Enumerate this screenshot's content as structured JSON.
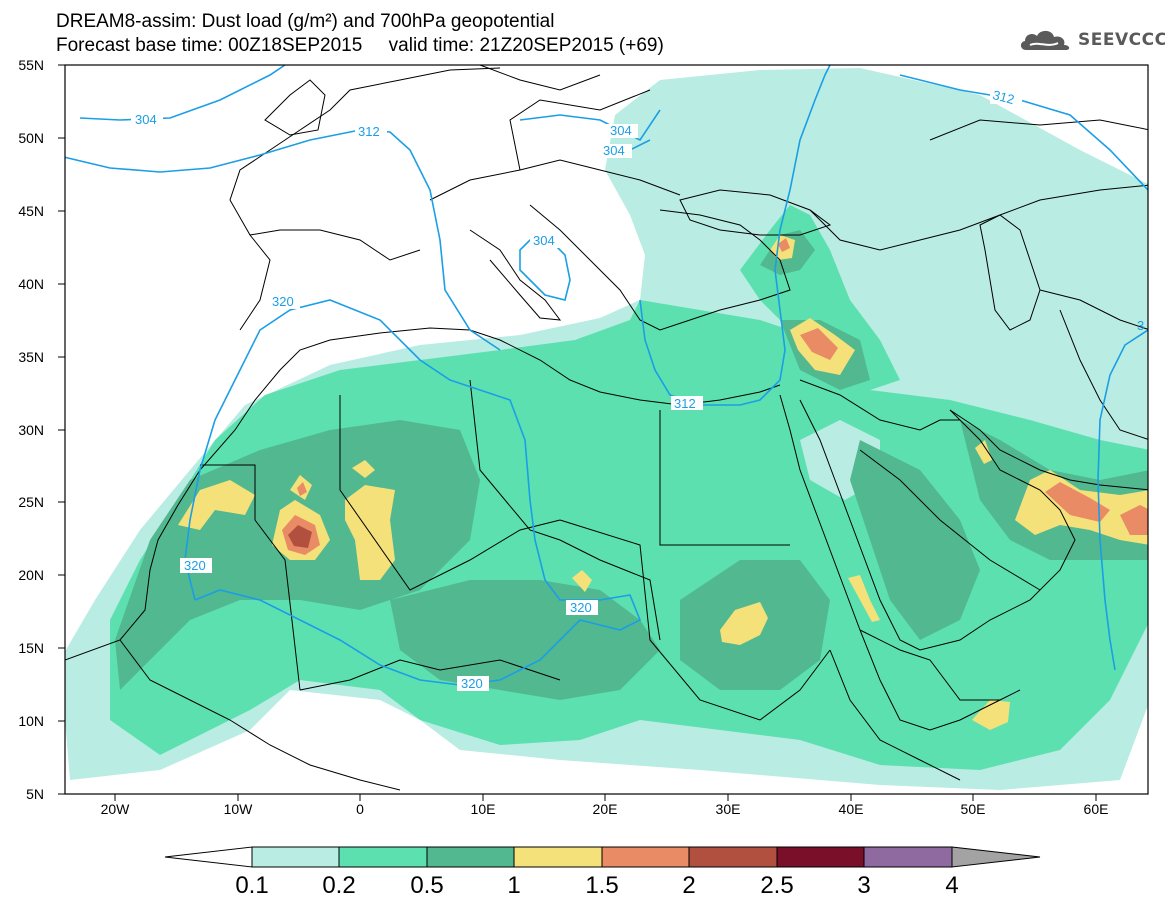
{
  "title": {
    "line1": "DREAM8-assim: Dust load (g/m²) and 700hPa geopotential",
    "line2": "Forecast base time: 00Z18SEP2015     valid time: 21Z20SEP2015 (+69)"
  },
  "logo": {
    "text": "SEEVCCC",
    "icon": "cloud-icon",
    "color": "#5a5a5a"
  },
  "map": {
    "lon_range": [
      -25,
      65
    ],
    "lat_range": [
      5,
      55
    ],
    "lat_ticks": [
      "55N",
      "50N",
      "45N",
      "40N",
      "35N",
      "30N",
      "25N",
      "20N",
      "15N",
      "10N",
      "5N"
    ],
    "lon_ticks": [
      "20W",
      "10W",
      "0",
      "10E",
      "20E",
      "30E",
      "40E",
      "50E",
      "60E"
    ],
    "contour_color": "#1b9ee6",
    "contour_labels": [
      "304",
      "312",
      "304",
      "304",
      "304",
      "320",
      "312",
      "312",
      "320",
      "320",
      "320",
      "3"
    ]
  },
  "colorbar": {
    "labels": [
      "0.1",
      "0.2",
      "0.5",
      "1",
      "1.5",
      "2",
      "2.5",
      "3",
      "4"
    ],
    "colors": [
      "#ffffff",
      "#b9ece2",
      "#5ce0b0",
      "#52b890",
      "#f5e17a",
      "#e98b64",
      "#b2503f",
      "#7a0f2a",
      "#8f6aa1",
      "#a3a3a3"
    ]
  }
}
